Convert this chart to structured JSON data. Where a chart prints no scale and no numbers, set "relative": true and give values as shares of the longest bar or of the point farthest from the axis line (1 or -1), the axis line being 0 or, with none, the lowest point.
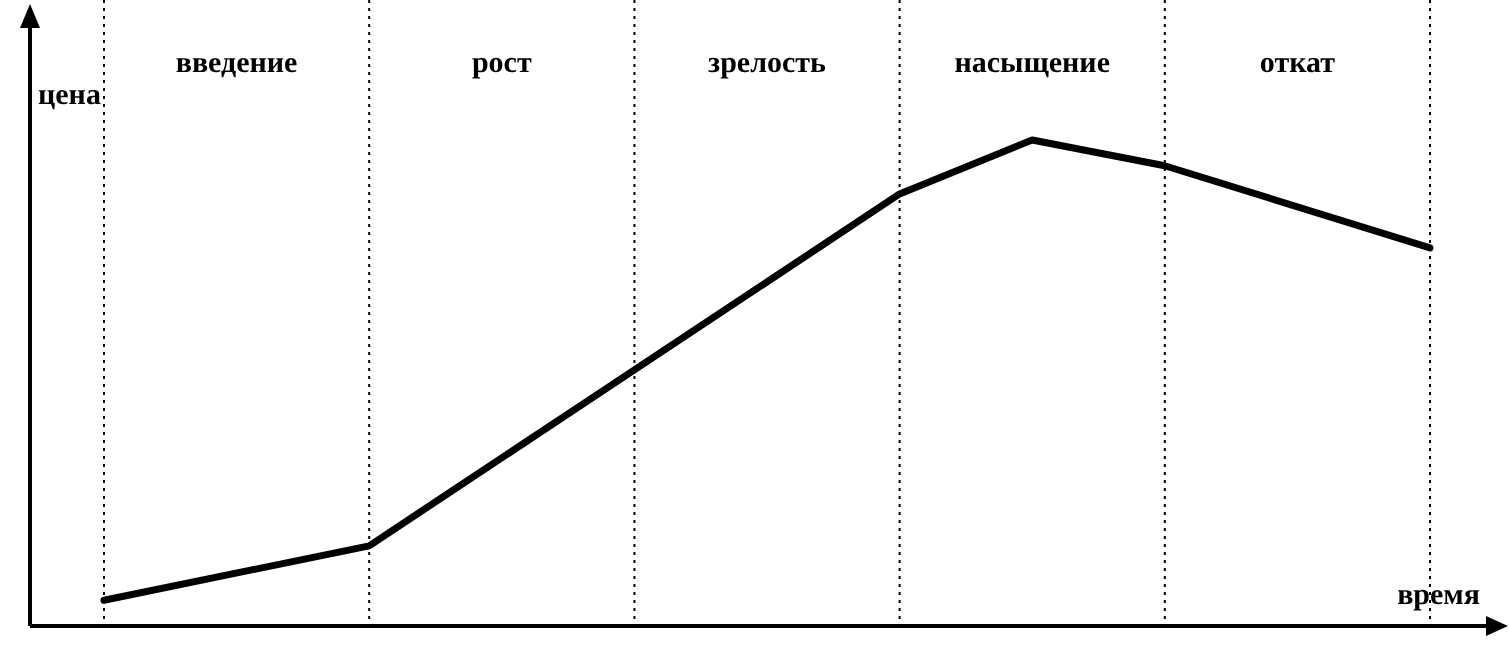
{
  "chart_data": {
    "type": "line",
    "relative": true,
    "xlabel": "время",
    "ylabel": "цена",
    "categories": [
      null,
      "введение",
      null,
      "рост",
      null,
      "зрелость",
      null,
      "насыщение",
      null,
      "откат",
      null
    ],
    "series": [
      {
        "color": "#000000",
        "values": [
          0.053,
          null,
          0.165,
          null,
          0.527,
          null,
          0.889,
          1,
          0.947,
          null,
          0.778
        ]
      }
    ],
    "marker": "none",
    "line_style": "solid",
    "grid": "x"
  }
}
